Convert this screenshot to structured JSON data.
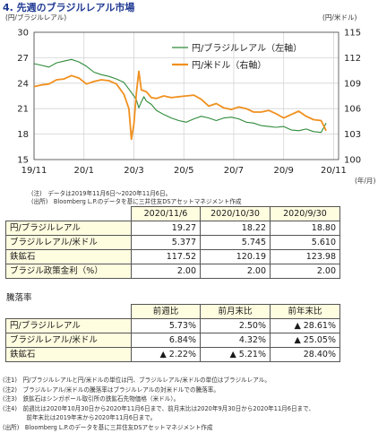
{
  "title": "4. 先週のブラジルレアル市場",
  "chart_data": {
    "type": "line",
    "left_unit": "(円/ブラジルレアル)",
    "right_unit": "(円/米ドル)",
    "x_unit": "(年/月)",
    "x_ticks": [
      "19/11",
      "20/1",
      "20/3",
      "20/5",
      "20/7",
      "20/9",
      "20/11"
    ],
    "left_axis": {
      "min": 15,
      "max": 30,
      "ticks": [
        15,
        18,
        21,
        24,
        27,
        30
      ]
    },
    "right_axis": {
      "min": 100,
      "max": 115,
      "ticks": [
        100,
        103,
        106,
        109,
        112,
        115
      ]
    },
    "legend": [
      {
        "name": "円/ブラジルレアル（左軸）",
        "color": "#2e8b3a",
        "axis": "left"
      },
      {
        "name": "円/米ドル（右軸）",
        "color": "#f0901e",
        "axis": "right"
      }
    ],
    "grid": true,
    "x_range": [
      0,
      12.2
    ],
    "series": [
      {
        "name": "円/ブラジルレアル（左軸）",
        "axis": "left",
        "color": "#2e8b3a",
        "x": [
          0.0,
          0.3,
          0.6,
          0.9,
          1.2,
          1.5,
          1.8,
          2.1,
          2.4,
          2.7,
          3.0,
          3.3,
          3.6,
          3.8,
          4.0,
          4.1,
          4.2,
          4.3,
          4.4,
          4.5,
          4.7,
          4.9,
          5.2,
          5.5,
          5.8,
          6.1,
          6.4,
          6.7,
          7.0,
          7.3,
          7.6,
          7.9,
          8.2,
          8.5,
          8.8,
          9.1,
          9.4,
          9.7,
          10.0,
          10.3,
          10.6,
          10.9,
          11.2,
          11.5,
          11.7
        ],
        "y": [
          26.3,
          26.1,
          25.9,
          26.4,
          26.6,
          26.8,
          26.5,
          26.0,
          25.3,
          25.0,
          24.8,
          24.5,
          24.1,
          23.3,
          22.5,
          22.0,
          21.1,
          21.8,
          22.4,
          21.9,
          21.5,
          20.8,
          20.3,
          19.9,
          19.6,
          19.4,
          19.8,
          20.1,
          19.9,
          19.6,
          19.9,
          20.0,
          19.8,
          19.4,
          19.3,
          19.0,
          18.9,
          18.8,
          18.9,
          18.5,
          18.4,
          18.6,
          18.3,
          18.2,
          19.3
        ]
      },
      {
        "name": "円/米ドル（右軸）",
        "axis": "right",
        "color": "#f0901e",
        "x": [
          0.0,
          0.3,
          0.6,
          0.9,
          1.2,
          1.5,
          1.8,
          2.1,
          2.4,
          2.7,
          3.0,
          3.3,
          3.6,
          3.8,
          3.9,
          4.0,
          4.1,
          4.2,
          4.3,
          4.5,
          4.7,
          4.9,
          5.2,
          5.5,
          5.8,
          6.1,
          6.4,
          6.7,
          7.0,
          7.3,
          7.6,
          7.9,
          8.2,
          8.5,
          8.8,
          9.1,
          9.4,
          9.7,
          10.0,
          10.3,
          10.6,
          10.9,
          11.2,
          11.5,
          11.7
        ],
        "y": [
          108.6,
          108.8,
          108.9,
          109.4,
          109.5,
          109.9,
          109.6,
          108.9,
          109.2,
          109.4,
          109.3,
          108.9,
          107.7,
          106.0,
          102.4,
          104.2,
          107.9,
          110.4,
          108.2,
          108.0,
          107.3,
          107.2,
          107.5,
          107.3,
          107.4,
          107.5,
          107.6,
          107.1,
          106.3,
          106.6,
          106.1,
          105.9,
          106.2,
          106.0,
          105.6,
          105.6,
          105.8,
          105.4,
          104.9,
          105.3,
          105.7,
          105.1,
          104.7,
          104.6,
          103.4
        ]
      }
    ]
  },
  "source_note": [
    "(注)　データは2019年11月6日～2020年11月6日。",
    "(出所)　Bloomberg L.P.のデータを基に三井住友DSアセットマネジメント作成"
  ],
  "price_table": {
    "columns": [
      "2020/11/6",
      "2020/10/30",
      "2020/9/30"
    ],
    "rows": [
      {
        "label": "円/ブラジルレアル",
        "values": [
          "19.27",
          "18.22",
          "18.80"
        ]
      },
      {
        "label": "ブラジルレアル/米ドル",
        "values": [
          "5.377",
          "5.745",
          "5.610"
        ]
      },
      {
        "label": "鉄鉱石",
        "values": [
          "117.52",
          "120.19",
          "123.98"
        ]
      },
      {
        "label": "ブラジル政策金利（%）",
        "values": [
          "2.00",
          "2.00",
          "2.00"
        ]
      }
    ]
  },
  "rate_table": {
    "title": "騰落率",
    "columns": [
      "前週比",
      "前月末比",
      "前年末比"
    ],
    "rows": [
      {
        "label": "円/ブラジルレアル",
        "values": [
          "5.73%",
          "2.50%",
          "▲ 28.61%"
        ]
      },
      {
        "label": "ブラジルレアル/米ドル",
        "values": [
          "6.84%",
          "4.32%",
          "▲ 25.05%"
        ]
      },
      {
        "label": "鉄鉱石",
        "values": [
          "▲ 2.22%",
          "▲ 5.21%",
          "28.40%"
        ]
      }
    ]
  },
  "footnotes": [
    "(注1)　円/ブラジルレアルと円/米ドルの単位は円、ブラジルレアル/米ドルの単位はブラジルレアル。",
    "(注2)　ブラジルレアル/米ドルの騰落率はブラジルレアルの対米ドルでの騰落率。",
    "(注3)　鉄鉱石はシンガポール取引所の鉄鉱石先物価格（米ドル）。",
    "(注4)　前週比は2020年10月30日から2020年11月6日まで、前月末比は2020年9月30日から2020年11月6日まで、",
    "　　　　前年末比は2019年末から2020年11月6日まで。",
    "(出所)　Bloomberg L.P.のデータを基に三井住友DSアセットマネジメント作成"
  ]
}
